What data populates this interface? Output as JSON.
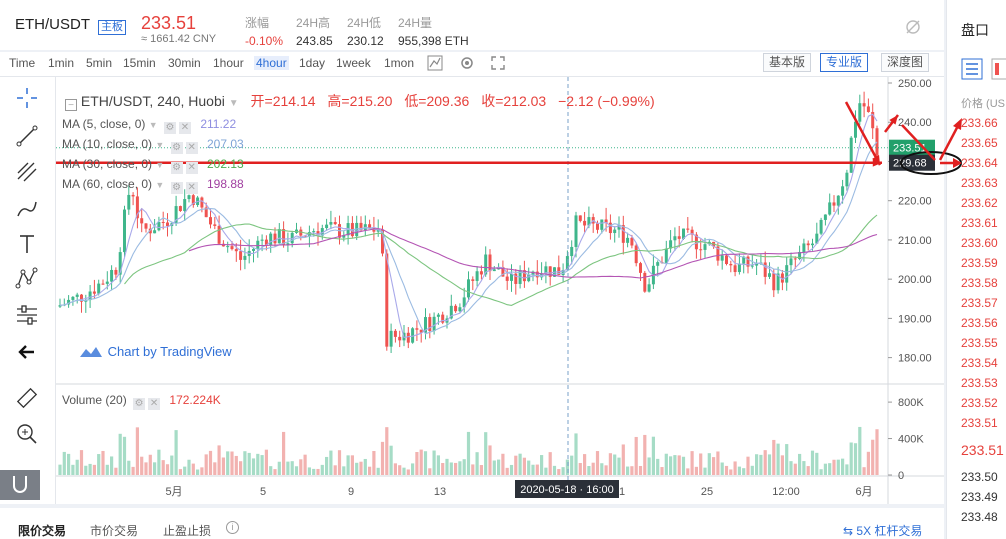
{
  "ticker": {
    "pair": "ETH/USDT",
    "badge": "主板",
    "price": "233.51",
    "cny": "≈ 1661.42 CNY",
    "stats": [
      {
        "label": "涨幅",
        "value": "-0.10%"
      },
      {
        "label": "24H高",
        "value": "243.85"
      },
      {
        "label": "24H低",
        "value": "230.12"
      },
      {
        "label": "24H量",
        "value": "955,398 ETH"
      }
    ]
  },
  "toolbar": {
    "timeframes": [
      "Time",
      "1min",
      "5min",
      "15min",
      "30min",
      "1hour",
      "4hour",
      "1day",
      "1week",
      "1mon"
    ],
    "active_timeframe": "4hour",
    "views": [
      "基本版",
      "专业版",
      "深度图"
    ],
    "active_view": "专业版"
  },
  "legend": {
    "title": "ETH/USDT, 240, Huobi",
    "open_label": "开=214.14",
    "high_label": "高=215.20",
    "low_label": "低=209.36",
    "close_label": "收=212.03",
    "change": "−2.12 (−0.99%)",
    "ma": [
      {
        "label": "MA (5, close, 0)",
        "value": "211.22",
        "color": "#8e8ee0"
      },
      {
        "label": "MA (10, close, 0)",
        "value": "207.03",
        "color": "#7fa4d6"
      },
      {
        "label": "MA (30, close, 0)",
        "value": "202.13",
        "color": "#4caf50"
      },
      {
        "label": "MA (60, close, 0)",
        "value": "198.88",
        "color": "#a03fa0"
      }
    ],
    "volume_label": "Volume (20)",
    "volume_value": "172.224K"
  },
  "watermark": "Chart by TradingView",
  "price_axis": {
    "ticks": [
      "250.00",
      "240.00",
      "230.00",
      "220.00",
      "210.00",
      "200.00",
      "190.00",
      "180.00"
    ],
    "current_label": "233.51",
    "cursor_label": "229.68"
  },
  "volume_axis": {
    "ticks": [
      "800K",
      "400K",
      "0"
    ]
  },
  "time_axis": {
    "ticks": [
      "5月",
      "5",
      "9",
      "13",
      "1",
      "25",
      "12:00",
      "6月"
    ],
    "cursor_label": "2020-05-18 · 16:00"
  },
  "order_panel": {
    "title": "盘口",
    "price_header": "价格 (US",
    "asks": [
      "233.66",
      "233.65",
      "233.64",
      "233.63",
      "233.62",
      "233.61",
      "233.60",
      "233.59",
      "233.58",
      "233.57",
      "233.56",
      "233.55",
      "233.54",
      "233.53",
      "233.52",
      "233.51"
    ],
    "last_price": "233.51",
    "bids": [
      "233.50",
      "233.49",
      "233.48"
    ],
    "ask_color": "#e6413c",
    "bid_color": "#22a06b"
  },
  "bottom_tabs": [
    "限价交易",
    "市价交易",
    "止盈止损"
  ],
  "leverage_link": "5X 杠杆交易",
  "colors": {
    "up": "#3fb68b",
    "down": "#ef5350",
    "accent": "#2f6fd6",
    "annotation": "#e02020"
  }
}
